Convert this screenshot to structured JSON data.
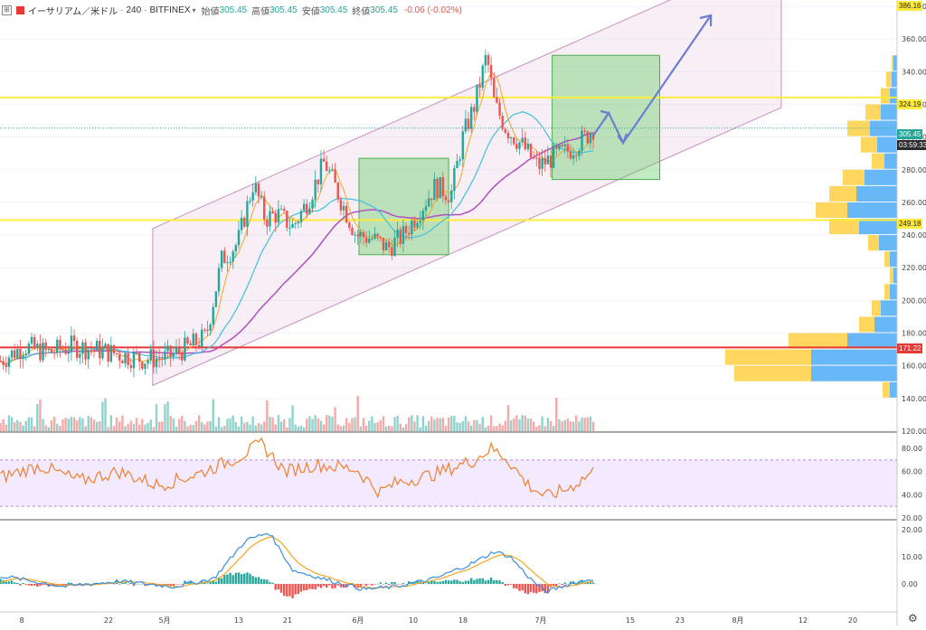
{
  "header": {
    "toggle_icon": "plus-box-icon",
    "symbol_icon": "red-square-icon",
    "symbol": "イーサリアム／米ドル",
    "interval": "240",
    "exchange": "BITFINEX",
    "open_label": "始値",
    "open_value": "305.45",
    "high_label": "高値",
    "high_value": "305.45",
    "low_label": "安値",
    "low_value": "305.45",
    "close_label": "終値",
    "close_value": "305.45",
    "change": "-0.06 (-0.02%)"
  },
  "price_axis": {
    "ticks": [
      "380.00",
      "360.00",
      "340.00",
      "320.00",
      "300.00",
      "280.00",
      "260.00",
      "240.00",
      "220.00",
      "200.00",
      "180.00",
      "160.00",
      "140.00",
      "120.00"
    ]
  },
  "price_tags": {
    "resistance_top": "386.16",
    "resistance_mid": "324.19",
    "current_price": "305.45",
    "countdown": "03:59:33",
    "support": "249.18",
    "volume_poc": "171.22"
  },
  "rsi_axis": {
    "ticks": [
      "80.00",
      "60.00",
      "40.00",
      "20.00"
    ]
  },
  "macd_axis": {
    "ticks": [
      "20.00",
      "10.00",
      "0.00"
    ]
  },
  "time_axis": {
    "labels": [
      "8",
      "22",
      "5月",
      "13",
      "21",
      "6月",
      "10",
      "18",
      "7月",
      "15",
      "23",
      "8月",
      "12",
      "20"
    ]
  },
  "settings_icon": "gear-icon",
  "chart_data": {
    "type": "candlestick",
    "price_range": [
      120,
      390
    ],
    "horizontal_lines": [
      {
        "price": 386.16,
        "color": "#ffeb3b"
      },
      {
        "price": 324.19,
        "color": "#ffeb3b"
      },
      {
        "price": 249.18,
        "color": "#ffeb3b"
      },
      {
        "price": 171.22,
        "color": "#e53935"
      }
    ],
    "price_path": [
      [
        0,
        163
      ],
      [
        0.03,
        172
      ],
      [
        0.06,
        168
      ],
      [
        0.09,
        172
      ],
      [
        0.12,
        170
      ],
      [
        0.15,
        167
      ],
      [
        0.18,
        164
      ],
      [
        0.21,
        165
      ],
      [
        0.24,
        172
      ],
      [
        0.26,
        178
      ],
      [
        0.28,
        225
      ],
      [
        0.3,
        235
      ],
      [
        0.32,
        272
      ],
      [
        0.335,
        250
      ],
      [
        0.35,
        253
      ],
      [
        0.37,
        245
      ],
      [
        0.39,
        262
      ],
      [
        0.41,
        285
      ],
      [
        0.43,
        262
      ],
      [
        0.45,
        240
      ],
      [
        0.47,
        238
      ],
      [
        0.49,
        232
      ],
      [
        0.51,
        240
      ],
      [
        0.53,
        255
      ],
      [
        0.55,
        270
      ],
      [
        0.57,
        265
      ],
      [
        0.585,
        300
      ],
      [
        0.6,
        320
      ],
      [
        0.615,
        350
      ],
      [
        0.625,
        320
      ],
      [
        0.64,
        305
      ],
      [
        0.66,
        295
      ],
      [
        0.68,
        282
      ],
      [
        0.7,
        288
      ],
      [
        0.72,
        292
      ],
      [
        0.74,
        300
      ],
      [
        0.75,
        305.45
      ]
    ],
    "rsi_range": [
      20,
      90
    ],
    "rsi_band": [
      30,
      70
    ],
    "rsi_path": [
      [
        0,
        55
      ],
      [
        0.05,
        65
      ],
      [
        0.1,
        52
      ],
      [
        0.15,
        60
      ],
      [
        0.2,
        48
      ],
      [
        0.25,
        58
      ],
      [
        0.3,
        72
      ],
      [
        0.33,
        84
      ],
      [
        0.36,
        60
      ],
      [
        0.4,
        66
      ],
      [
        0.45,
        62
      ],
      [
        0.48,
        42
      ],
      [
        0.5,
        50
      ],
      [
        0.55,
        58
      ],
      [
        0.6,
        70
      ],
      [
        0.62,
        80
      ],
      [
        0.64,
        72
      ],
      [
        0.665,
        50
      ],
      [
        0.69,
        38
      ],
      [
        0.72,
        46
      ],
      [
        0.75,
        60
      ]
    ],
    "macd_range": [
      -5,
      22
    ],
    "macd_path": [
      [
        0,
        3
      ],
      [
        0.08,
        -1
      ],
      [
        0.15,
        1
      ],
      [
        0.22,
        -1
      ],
      [
        0.27,
        2
      ],
      [
        0.31,
        16
      ],
      [
        0.34,
        19
      ],
      [
        0.37,
        5
      ],
      [
        0.42,
        1
      ],
      [
        0.46,
        -2
      ],
      [
        0.5,
        -1
      ],
      [
        0.55,
        2
      ],
      [
        0.6,
        8
      ],
      [
        0.625,
        12
      ],
      [
        0.645,
        10
      ],
      [
        0.67,
        2
      ],
      [
        0.69,
        -3
      ],
      [
        0.72,
        0
      ],
      [
        0.75,
        2
      ]
    ],
    "zones": [
      {
        "label": "",
        "from": [
          0.445,
          287
        ],
        "to": [
          0.58,
          228
        ]
      },
      {
        "label": "",
        "from": [
          0.66,
          350
        ],
        "to": [
          0.815,
          274
        ]
      }
    ],
    "channel": {
      "start_x": 0.17,
      "end_x": 0.9,
      "lower_start": 148,
      "lower_end": 318,
      "upper_start": 244,
      "upper_end": 414
    }
  }
}
